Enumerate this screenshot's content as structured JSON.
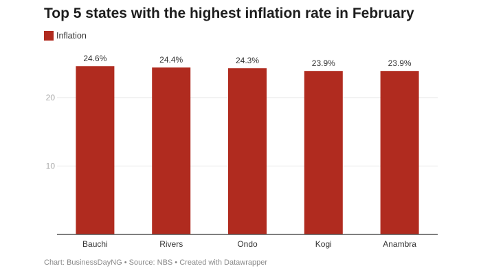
{
  "chart_data": {
    "type": "bar",
    "title": "Top 5 states with the highest inflation rate in February",
    "categories": [
      "Bauchi",
      "Rivers",
      "Ondo",
      "Kogi",
      "Anambra"
    ],
    "series": [
      {
        "name": "Inflation",
        "values": [
          24.6,
          24.4,
          24.3,
          23.9,
          23.9
        ],
        "color": "#b02b1f"
      }
    ],
    "data_labels": [
      "24.6%",
      "24.4%",
      "24.3%",
      "23.9%",
      "23.9%"
    ],
    "yticks": [
      10,
      20
    ],
    "ylim": [
      0,
      20.2
    ],
    "xlabel": "",
    "ylabel": "",
    "grid": true,
    "legend": "top-left"
  },
  "footer": "Chart: BusinessDayNG • Source: NBS • Created with Datawrapper"
}
